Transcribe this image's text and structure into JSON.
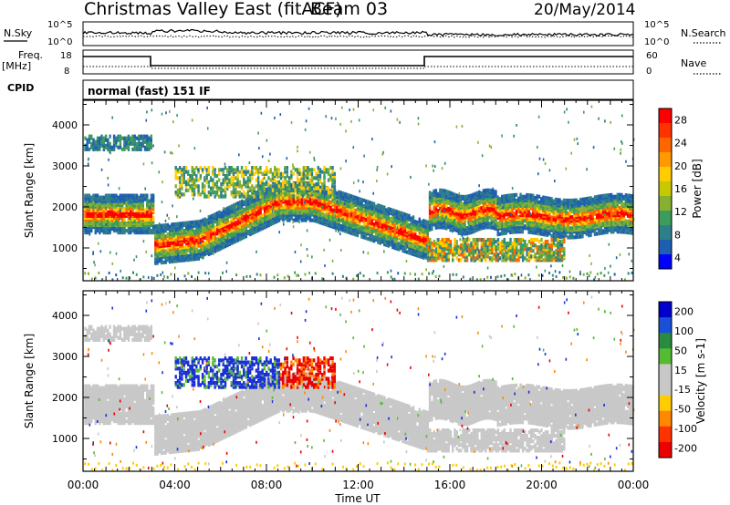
{
  "header": {
    "title": "Christmas Valley East (fitACF)",
    "beam": "Beam 03",
    "date": "20/May/2014"
  },
  "status": {
    "nsky_label": "N.Sky",
    "nsearch_label": "N.Search",
    "nsearch_ticks": [
      "10^5",
      "10^0"
    ],
    "nsky_ticks": [
      "10^5",
      "10^0"
    ],
    "freq_label_1": "Freq.",
    "freq_label_2": "[MHz]",
    "freq_ticks": [
      "18",
      "8"
    ],
    "nave_label": "Nave",
    "nave_ticks": [
      "60",
      "0"
    ],
    "cpid_label": "CPID",
    "cpid_text": "normal (fast) 151 IF"
  },
  "chart_data": [
    {
      "type": "heatmap",
      "panel": "power",
      "ylabel": "Slant Range [km]",
      "ylim": [
        200,
        4600
      ],
      "y_ticks": [
        1000,
        2000,
        3000,
        4000
      ],
      "colorbar_label": "Power [dB]",
      "colorbar_ticks": [
        "28",
        "24",
        "20",
        "16",
        "12",
        "8",
        "4"
      ],
      "colorbar_colors": [
        "#ff0000",
        "#ff3300",
        "#ff6600",
        "#ff9900",
        "#ffcc00",
        "#c8c800",
        "#88b030",
        "#3c9c5a",
        "#2f7f8a",
        "#1f5fb0",
        "#0000ff"
      ]
    },
    {
      "type": "heatmap",
      "panel": "velocity",
      "ylabel": "Slant Range [km]",
      "xlabel": "Time UT",
      "ylim": [
        200,
        4600
      ],
      "y_ticks": [
        1000,
        2000,
        3000,
        4000
      ],
      "colorbar_label": "Velocity [m s-1]",
      "colorbar_ticks": [
        "200",
        "100",
        "50",
        "15",
        "-15",
        "-50",
        "-100",
        "-200"
      ],
      "colorbar_colors": [
        "#0000cc",
        "#1a4fd8",
        "#2a8a40",
        "#55bb33",
        "#c8c8c8",
        "#c8c8c8",
        "#ffcc00",
        "#ff8800",
        "#ff3300",
        "#ee0000"
      ]
    }
  ],
  "x_axis": {
    "ticks": [
      "00:00",
      "04:00",
      "08:00",
      "12:00",
      "16:00",
      "20:00",
      "00:00"
    ],
    "xlim_hours": [
      0,
      24
    ]
  }
}
